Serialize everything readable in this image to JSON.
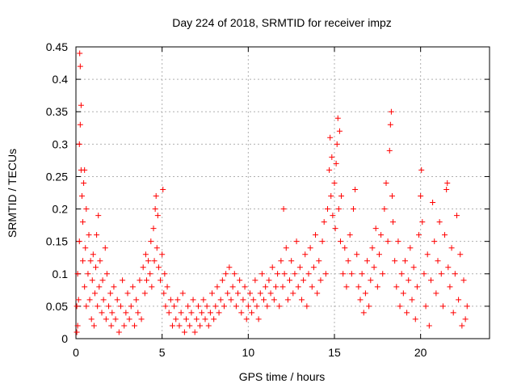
{
  "chart_data": {
    "type": "scatter",
    "title": "Day 224 of 2018, SRMTID for receiver impz",
    "xlabel": "GPS time / hours",
    "ylabel": "SRMTID / TECUs",
    "xlim": [
      0,
      24
    ],
    "ylim": [
      0,
      0.45
    ],
    "x_ticks": [
      0,
      5,
      10,
      15,
      20
    ],
    "y_ticks": [
      0,
      0.05,
      0.1,
      0.15,
      0.2,
      0.25,
      0.3,
      0.35,
      0.4,
      0.45
    ],
    "x_tick_labels": [
      "0",
      "5",
      "10",
      "15",
      "20"
    ],
    "y_tick_labels": [
      "0",
      "0.05",
      "0.1",
      "0.15",
      "0.2",
      "0.25",
      "0.3",
      "0.35",
      "0.4",
      "0.45"
    ],
    "grid": true,
    "marker": "+",
    "color": "#ff0000",
    "series": [
      {
        "name": "SRMTID",
        "points": [
          [
            0.05,
            0.01
          ],
          [
            0.05,
            0.05
          ],
          [
            0.1,
            0.02
          ],
          [
            0.1,
            0.1
          ],
          [
            0.15,
            0.06
          ],
          [
            0.2,
            0.15
          ],
          [
            0.2,
            0.3
          ],
          [
            0.22,
            0.44
          ],
          [
            0.25,
            0.42
          ],
          [
            0.25,
            0.33
          ],
          [
            0.3,
            0.36
          ],
          [
            0.3,
            0.26
          ],
          [
            0.35,
            0.22
          ],
          [
            0.4,
            0.18
          ],
          [
            0.4,
            0.12
          ],
          [
            0.45,
            0.24
          ],
          [
            0.5,
            0.26
          ],
          [
            0.5,
            0.08
          ],
          [
            0.55,
            0.14
          ],
          [
            0.6,
            0.2
          ],
          [
            0.6,
            0.05
          ],
          [
            0.7,
            0.1
          ],
          [
            0.75,
            0.16
          ],
          [
            0.8,
            0.06
          ],
          [
            0.85,
            0.12
          ],
          [
            0.9,
            0.03
          ],
          [
            0.95,
            0.09
          ],
          [
            1.0,
            0.13
          ],
          [
            1.05,
            0.02
          ],
          [
            1.1,
            0.07
          ],
          [
            1.15,
            0.11
          ],
          [
            1.2,
            0.16
          ],
          [
            1.25,
            0.05
          ],
          [
            1.3,
            0.19
          ],
          [
            1.35,
            0.08
          ],
          [
            1.4,
            0.12
          ],
          [
            1.5,
            0.04
          ],
          [
            1.55,
            0.09
          ],
          [
            1.6,
            0.06
          ],
          [
            1.7,
            0.14
          ],
          [
            1.75,
            0.03
          ],
          [
            1.8,
            0.1
          ],
          [
            1.9,
            0.05
          ],
          [
            2.0,
            0.07
          ],
          [
            2.05,
            0.02
          ],
          [
            2.1,
            0.04
          ],
          [
            2.2,
            0.08
          ],
          [
            2.3,
            0.03
          ],
          [
            2.4,
            0.06
          ],
          [
            2.5,
            0.01
          ],
          [
            2.6,
            0.05
          ],
          [
            2.7,
            0.09
          ],
          [
            2.8,
            0.02
          ],
          [
            2.9,
            0.04
          ],
          [
            3.0,
            0.07
          ],
          [
            3.1,
            0.03
          ],
          [
            3.2,
            0.05
          ],
          [
            3.3,
            0.08
          ],
          [
            3.4,
            0.02
          ],
          [
            3.5,
            0.06
          ],
          [
            3.6,
            0.04
          ],
          [
            3.7,
            0.09
          ],
          [
            3.8,
            0.03
          ],
          [
            3.9,
            0.11
          ],
          [
            4.0,
            0.07
          ],
          [
            4.05,
            0.13
          ],
          [
            4.1,
            0.09
          ],
          [
            4.2,
            0.12
          ],
          [
            4.3,
            0.1
          ],
          [
            4.35,
            0.15
          ],
          [
            4.4,
            0.08
          ],
          [
            4.5,
            0.17
          ],
          [
            4.55,
            0.12
          ],
          [
            4.6,
            0.2
          ],
          [
            4.65,
            0.22
          ],
          [
            4.7,
            0.14
          ],
          [
            4.75,
            0.19
          ],
          [
            4.8,
            0.11
          ],
          [
            4.9,
            0.09
          ],
          [
            5.0,
            0.13
          ],
          [
            5.05,
            0.23
          ],
          [
            5.1,
            0.07
          ],
          [
            5.15,
            0.1
          ],
          [
            5.2,
            0.05
          ],
          [
            5.3,
            0.08
          ],
          [
            5.4,
            0.04
          ],
          [
            5.5,
            0.06
          ],
          [
            5.6,
            0.02
          ],
          [
            5.7,
            0.05
          ],
          [
            5.8,
            0.03
          ],
          [
            5.9,
            0.06
          ],
          [
            6.0,
            0.02
          ],
          [
            6.1,
            0.04
          ],
          [
            6.2,
            0.07
          ],
          [
            6.3,
            0.01
          ],
          [
            6.4,
            0.03
          ],
          [
            6.5,
            0.05
          ],
          [
            6.6,
            0.02
          ],
          [
            6.7,
            0.04
          ],
          [
            6.8,
            0.06
          ],
          [
            6.9,
            0.01
          ],
          [
            7.0,
            0.03
          ],
          [
            7.1,
            0.05
          ],
          [
            7.2,
            0.02
          ],
          [
            7.3,
            0.04
          ],
          [
            7.4,
            0.06
          ],
          [
            7.5,
            0.03
          ],
          [
            7.6,
            0.05
          ],
          [
            7.7,
            0.02
          ],
          [
            7.8,
            0.04
          ],
          [
            7.9,
            0.07
          ],
          [
            8.0,
            0.03
          ],
          [
            8.1,
            0.05
          ],
          [
            8.2,
            0.08
          ],
          [
            8.3,
            0.04
          ],
          [
            8.4,
            0.06
          ],
          [
            8.5,
            0.09
          ],
          [
            8.6,
            0.05
          ],
          [
            8.7,
            0.1
          ],
          [
            8.8,
            0.07
          ],
          [
            8.9,
            0.11
          ],
          [
            9.0,
            0.06
          ],
          [
            9.1,
            0.08
          ],
          [
            9.2,
            0.1
          ],
          [
            9.3,
            0.05
          ],
          [
            9.4,
            0.07
          ],
          [
            9.5,
            0.09
          ],
          [
            9.6,
            0.04
          ],
          [
            9.7,
            0.06
          ],
          [
            9.8,
            0.08
          ],
          [
            9.9,
            0.03
          ],
          [
            10.0,
            0.05
          ],
          [
            10.1,
            0.07
          ],
          [
            10.2,
            0.04
          ],
          [
            10.3,
            0.06
          ],
          [
            10.4,
            0.09
          ],
          [
            10.5,
            0.05
          ],
          [
            10.6,
            0.03
          ],
          [
            10.7,
            0.07
          ],
          [
            10.8,
            0.1
          ],
          [
            10.9,
            0.06
          ],
          [
            11.0,
            0.08
          ],
          [
            11.1,
            0.05
          ],
          [
            11.2,
            0.09
          ],
          [
            11.3,
            0.07
          ],
          [
            11.4,
            0.11
          ],
          [
            11.5,
            0.06
          ],
          [
            11.6,
            0.08
          ],
          [
            11.7,
            0.1
          ],
          [
            11.8,
            0.05
          ],
          [
            11.9,
            0.12
          ],
          [
            12.0,
            0.08
          ],
          [
            12.05,
            0.2
          ],
          [
            12.1,
            0.1
          ],
          [
            12.2,
            0.14
          ],
          [
            12.3,
            0.06
          ],
          [
            12.4,
            0.09
          ],
          [
            12.5,
            0.12
          ],
          [
            12.6,
            0.07
          ],
          [
            12.7,
            0.1
          ],
          [
            12.8,
            0.15
          ],
          [
            12.9,
            0.08
          ],
          [
            13.0,
            0.11
          ],
          [
            13.1,
            0.06
          ],
          [
            13.2,
            0.09
          ],
          [
            13.3,
            0.13
          ],
          [
            13.4,
            0.05
          ],
          [
            13.5,
            0.1
          ],
          [
            13.6,
            0.14
          ],
          [
            13.7,
            0.08
          ],
          [
            13.8,
            0.11
          ],
          [
            13.9,
            0.16
          ],
          [
            14.0,
            0.07
          ],
          [
            14.1,
            0.12
          ],
          [
            14.2,
            0.09
          ],
          [
            14.3,
            0.15
          ],
          [
            14.4,
            0.18
          ],
          [
            14.5,
            0.1
          ],
          [
            14.6,
            0.2
          ],
          [
            14.7,
            0.26
          ],
          [
            14.75,
            0.31
          ],
          [
            14.8,
            0.22
          ],
          [
            14.85,
            0.28
          ],
          [
            14.9,
            0.19
          ],
          [
            15.0,
            0.24
          ],
          [
            15.05,
            0.17
          ],
          [
            15.1,
            0.27
          ],
          [
            15.15,
            0.3
          ],
          [
            15.2,
            0.34
          ],
          [
            15.25,
            0.2
          ],
          [
            15.3,
            0.32
          ],
          [
            15.35,
            0.15
          ],
          [
            15.4,
            0.22
          ],
          [
            15.5,
            0.1
          ],
          [
            15.6,
            0.14
          ],
          [
            15.7,
            0.08
          ],
          [
            15.8,
            0.12
          ],
          [
            15.9,
            0.16
          ],
          [
            16.0,
            0.1
          ],
          [
            16.1,
            0.2
          ],
          [
            16.2,
            0.23
          ],
          [
            16.3,
            0.13
          ],
          [
            16.4,
            0.08
          ],
          [
            16.5,
            0.06
          ],
          [
            16.6,
            0.1
          ],
          [
            16.7,
            0.04
          ],
          [
            16.8,
            0.07
          ],
          [
            16.9,
            0.12
          ],
          [
            17.0,
            0.05
          ],
          [
            17.1,
            0.09
          ],
          [
            17.2,
            0.14
          ],
          [
            17.3,
            0.11
          ],
          [
            17.4,
            0.17
          ],
          [
            17.5,
            0.08
          ],
          [
            17.6,
            0.13
          ],
          [
            17.7,
            0.16
          ],
          [
            17.8,
            0.1
          ],
          [
            17.9,
            0.2
          ],
          [
            18.0,
            0.24
          ],
          [
            18.1,
            0.15
          ],
          [
            18.2,
            0.29
          ],
          [
            18.25,
            0.33
          ],
          [
            18.3,
            0.35
          ],
          [
            18.35,
            0.22
          ],
          [
            18.4,
            0.18
          ],
          [
            18.5,
            0.12
          ],
          [
            18.6,
            0.08
          ],
          [
            18.7,
            0.15
          ],
          [
            18.8,
            0.05
          ],
          [
            18.9,
            0.1
          ],
          [
            19.0,
            0.07
          ],
          [
            19.1,
            0.12
          ],
          [
            19.2,
            0.04
          ],
          [
            19.3,
            0.09
          ],
          [
            19.4,
            0.14
          ],
          [
            19.5,
            0.06
          ],
          [
            19.6,
            0.11
          ],
          [
            19.7,
            0.03
          ],
          [
            19.8,
            0.08
          ],
          [
            19.9,
            0.16
          ],
          [
            20.0,
            0.22
          ],
          [
            20.05,
            0.26
          ],
          [
            20.1,
            0.18
          ],
          [
            20.2,
            0.1
          ],
          [
            20.3,
            0.05
          ],
          [
            20.4,
            0.13
          ],
          [
            20.5,
            0.02
          ],
          [
            20.6,
            0.09
          ],
          [
            20.7,
            0.21
          ],
          [
            20.8,
            0.15
          ],
          [
            20.9,
            0.07
          ],
          [
            21.0,
            0.12
          ],
          [
            21.1,
            0.18
          ],
          [
            21.2,
            0.1
          ],
          [
            21.3,
            0.05
          ],
          [
            21.4,
            0.16
          ],
          [
            21.5,
            0.23
          ],
          [
            21.55,
            0.24
          ],
          [
            21.6,
            0.11
          ],
          [
            21.7,
            0.08
          ],
          [
            21.8,
            0.14
          ],
          [
            21.9,
            0.04
          ],
          [
            22.0,
            0.1
          ],
          [
            22.1,
            0.19
          ],
          [
            22.2,
            0.06
          ],
          [
            22.3,
            0.13
          ],
          [
            22.4,
            0.02
          ],
          [
            22.5,
            0.09
          ],
          [
            22.6,
            0.03
          ],
          [
            22.7,
            0.05
          ]
        ]
      }
    ]
  }
}
